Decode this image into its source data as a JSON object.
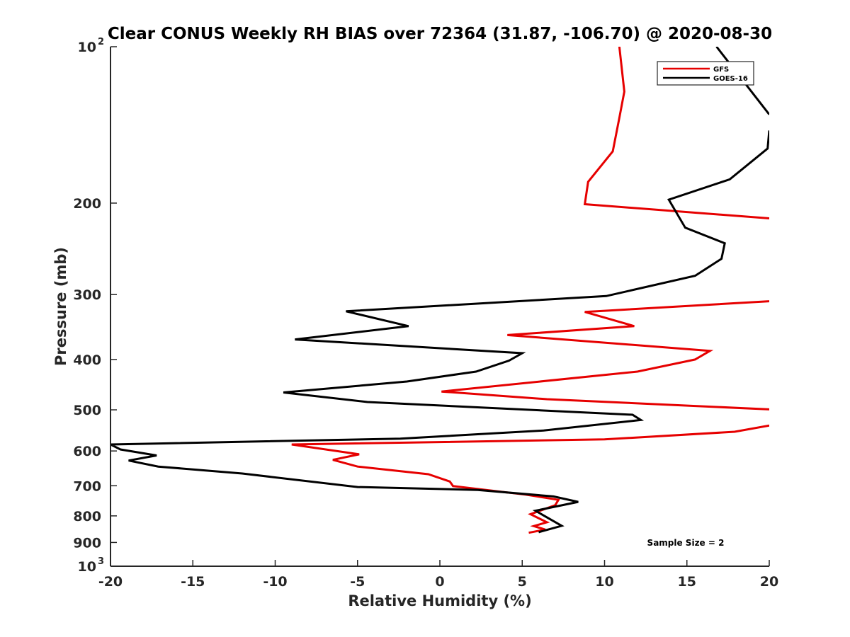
{
  "chart_data": {
    "type": "line",
    "title": "Clear CONUS Weekly RH BIAS over 72364 (31.87, -106.70) @ 2020-08-30",
    "xlabel": "Relative Humidity (%)",
    "ylabel": "Pressure (mb)",
    "xlim": [
      -20,
      20
    ],
    "ylim": [
      100,
      1000
    ],
    "y_scale": "log",
    "y_reversed": true,
    "x_ticks": [
      "-20",
      "-15",
      "-10",
      "-5",
      "0",
      "5",
      "10",
      "15",
      "20"
    ],
    "y_ticks": [
      {
        "value": 100,
        "base": "10",
        "exp": "2"
      },
      {
        "value": 200,
        "base": "200",
        "exp": ""
      },
      {
        "value": 300,
        "base": "300",
        "exp": ""
      },
      {
        "value": 400,
        "base": "400",
        "exp": ""
      },
      {
        "value": 500,
        "base": "500",
        "exp": ""
      },
      {
        "value": 600,
        "base": "600",
        "exp": ""
      },
      {
        "value": 700,
        "base": "700",
        "exp": ""
      },
      {
        "value": 800,
        "base": "800",
        "exp": ""
      },
      {
        "value": 900,
        "base": "900",
        "exp": ""
      },
      {
        "value": 1000,
        "base": "10",
        "exp": "3"
      }
    ],
    "grid": false,
    "legend_position": "top-right",
    "annotation": "Sample Size = 2",
    "series": [
      {
        "name": "GFS",
        "color": "#e60000",
        "points": [
          [
            10.9,
            100
          ],
          [
            11.2,
            122
          ],
          [
            10.9,
            137
          ],
          [
            10.5,
            159
          ],
          [
            9.0,
            182
          ],
          [
            8.8,
            201
          ],
          [
            20.0,
            214
          ],
          [
            null,
            null
          ],
          [
            20.0,
            309
          ],
          [
            8.8,
            324
          ],
          [
            11.8,
            345
          ],
          [
            4.1,
            359
          ],
          [
            16.4,
            385
          ],
          [
            15.5,
            400
          ],
          [
            12.0,
            422
          ],
          [
            0.1,
            461
          ],
          [
            6.5,
            477
          ],
          [
            20.0,
            499
          ],
          [
            null,
            null
          ],
          [
            20.0,
            536
          ],
          [
            17.9,
            551
          ],
          [
            10.0,
            570
          ],
          [
            -9.0,
            583
          ],
          [
            -4.9,
            609
          ],
          [
            -6.5,
            624
          ],
          [
            -5.0,
            643
          ],
          [
            -0.7,
            665
          ],
          [
            0.6,
            687
          ],
          [
            0.8,
            701
          ],
          [
            5.2,
            728
          ],
          [
            7.2,
            745
          ],
          [
            7.0,
            763
          ],
          [
            5.5,
            794
          ],
          [
            6.5,
            823
          ],
          [
            5.7,
            837
          ],
          [
            6.4,
            850
          ],
          [
            5.4,
            862
          ]
        ]
      },
      {
        "name": "GOES-16",
        "color": "#000000",
        "points": [
          [
            16.8,
            100
          ],
          [
            20.0,
            135
          ],
          [
            null,
            null
          ],
          [
            20.0,
            145
          ],
          [
            19.9,
            157
          ],
          [
            17.6,
            180
          ],
          [
            13.9,
            197
          ],
          [
            14.9,
            223
          ],
          [
            17.3,
            239
          ],
          [
            17.1,
            256
          ],
          [
            15.5,
            276
          ],
          [
            10.1,
            302
          ],
          [
            -5.7,
            323
          ],
          [
            -1.9,
            345
          ],
          [
            -8.8,
            366
          ],
          [
            5.0,
            389
          ],
          [
            4.2,
            402
          ],
          [
            2.2,
            422
          ],
          [
            -2.0,
            441
          ],
          [
            -9.5,
            463
          ],
          [
            -4.4,
            483
          ],
          [
            11.7,
            511
          ],
          [
            12.2,
            523
          ],
          [
            6.3,
            548
          ],
          [
            -2.4,
            568
          ],
          [
            -20.0,
            583
          ],
          [
            -19.4,
            596
          ],
          [
            -17.2,
            612
          ],
          [
            -18.9,
            626
          ],
          [
            -17.1,
            643
          ],
          [
            -12.0,
            663
          ],
          [
            -5.0,
            704
          ],
          [
            2.3,
            713
          ],
          [
            6.9,
            734
          ],
          [
            8.4,
            752
          ],
          [
            5.8,
            782
          ],
          [
            6.5,
            805
          ],
          [
            7.4,
            836
          ],
          [
            6.0,
            860
          ]
        ]
      }
    ]
  }
}
